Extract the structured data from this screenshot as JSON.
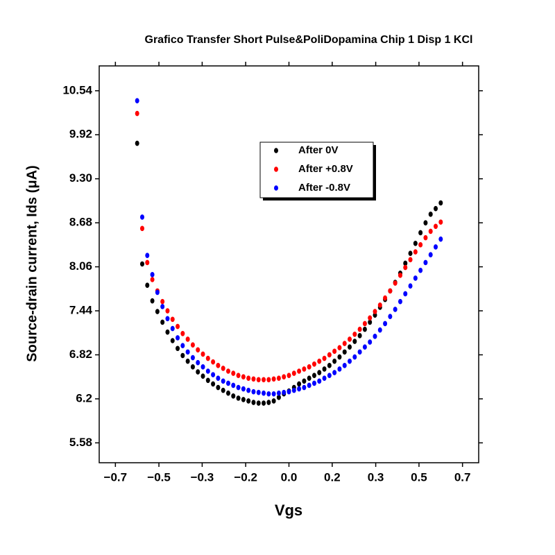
{
  "chart_data": {
    "type": "scatter",
    "title": "Grafico Transfer Short Pulse&PoliDopamina Chip 1 Disp 1 KCl",
    "x_label": "Vgs",
    "y_label": "Source-drain current, Ids (μA)",
    "xlim": [
      -0.75,
      0.75
    ],
    "ylim": [
      5.3,
      10.89
    ],
    "xticks": [
      {
        "value": -0.686,
        "label": "−0.7"
      },
      {
        "value": -0.514,
        "label": "−0.5"
      },
      {
        "value": -0.343,
        "label": "−0.3"
      },
      {
        "value": -0.171,
        "label": "−0.2"
      },
      {
        "value": 0,
        "label": "0.0"
      },
      {
        "value": 0.171,
        "label": "0.2"
      },
      {
        "value": 0.343,
        "label": "0.3"
      },
      {
        "value": 0.514,
        "label": "0.5"
      },
      {
        "value": 0.686,
        "label": "0.7"
      }
    ],
    "yticks": [
      5.58,
      6.2,
      {
        "value": 6.82,
        "label": "6.82"
      },
      7.44,
      8.06,
      8.68,
      {
        "value": 9.3,
        "label": "9.30"
      },
      9.92,
      10.54
    ],
    "legend": "top",
    "x": [
      -0.6,
      -0.58,
      -0.56,
      -0.54,
      -0.52,
      -0.5,
      -0.48,
      -0.46,
      -0.44,
      -0.42,
      -0.4,
      -0.38,
      -0.36,
      -0.34,
      -0.32,
      -0.3,
      -0.28,
      -0.26,
      -0.24,
      -0.22,
      -0.2,
      -0.18,
      -0.16,
      -0.14,
      -0.12,
      -0.1,
      -0.08,
      -0.06,
      -0.04,
      -0.02,
      0,
      0.02,
      0.04,
      0.06,
      0.08,
      0.1,
      0.12,
      0.14,
      0.16,
      0.18,
      0.2,
      0.22,
      0.24,
      0.26,
      0.28,
      0.3,
      0.32,
      0.34,
      0.36,
      0.38,
      0.4,
      0.42,
      0.44,
      0.46,
      0.48,
      0.5,
      0.52,
      0.54,
      0.56,
      0.58,
      0.6
    ],
    "series": [
      {
        "name": "After 0V",
        "color": "#000000",
        "values": [
          9.8,
          8.1,
          7.8,
          7.58,
          7.43,
          7.28,
          7.14,
          7.02,
          6.91,
          6.81,
          6.73,
          6.65,
          6.58,
          6.52,
          6.46,
          6.41,
          6.36,
          6.32,
          6.28,
          6.24,
          6.21,
          6.19,
          6.17,
          6.15,
          6.14,
          6.14,
          6.15,
          6.17,
          6.22,
          6.27,
          6.31,
          6.36,
          6.41,
          6.45,
          6.49,
          6.53,
          6.57,
          6.62,
          6.67,
          6.73,
          6.79,
          6.86,
          6.93,
          7.01,
          7.09,
          7.18,
          7.28,
          7.38,
          7.49,
          7.6,
          7.72,
          7.84,
          7.97,
          8.11,
          8.25,
          8.39,
          8.54,
          8.68,
          8.8,
          8.88,
          8.96
        ]
      },
      {
        "name": "After +0.8V",
        "color": "#ff0000",
        "values": [
          10.22,
          8.6,
          8.12,
          7.88,
          7.72,
          7.57,
          7.44,
          7.32,
          7.22,
          7.12,
          7.04,
          6.96,
          6.89,
          6.83,
          6.77,
          6.72,
          6.67,
          6.63,
          6.59,
          6.56,
          6.53,
          6.51,
          6.49,
          6.48,
          6.47,
          6.47,
          6.47,
          6.48,
          6.49,
          6.51,
          6.53,
          6.56,
          6.59,
          6.62,
          6.65,
          6.69,
          6.73,
          6.77,
          6.82,
          6.87,
          6.92,
          6.98,
          7.04,
          7.11,
          7.18,
          7.26,
          7.34,
          7.43,
          7.52,
          7.62,
          7.72,
          7.83,
          7.94,
          8.05,
          8.16,
          8.27,
          8.37,
          8.47,
          8.56,
          8.63,
          8.69
        ]
      },
      {
        "name": "After -0.8V",
        "color": "#0000ff",
        "values": [
          10.4,
          8.76,
          8.22,
          7.95,
          7.7,
          7.5,
          7.33,
          7.19,
          7.06,
          6.95,
          6.86,
          6.78,
          6.71,
          6.65,
          6.59,
          6.54,
          6.49,
          6.45,
          6.42,
          6.39,
          6.36,
          6.34,
          6.32,
          6.3,
          6.29,
          6.28,
          6.27,
          6.27,
          6.28,
          6.29,
          6.3,
          6.32,
          6.34,
          6.36,
          6.39,
          6.42,
          6.45,
          6.49,
          6.53,
          6.57,
          6.62,
          6.67,
          6.73,
          6.79,
          6.86,
          6.93,
          7.0,
          7.08,
          7.17,
          7.26,
          7.36,
          7.46,
          7.57,
          7.68,
          7.79,
          7.9,
          8.01,
          8.12,
          8.23,
          8.34,
          8.45
        ]
      }
    ]
  }
}
